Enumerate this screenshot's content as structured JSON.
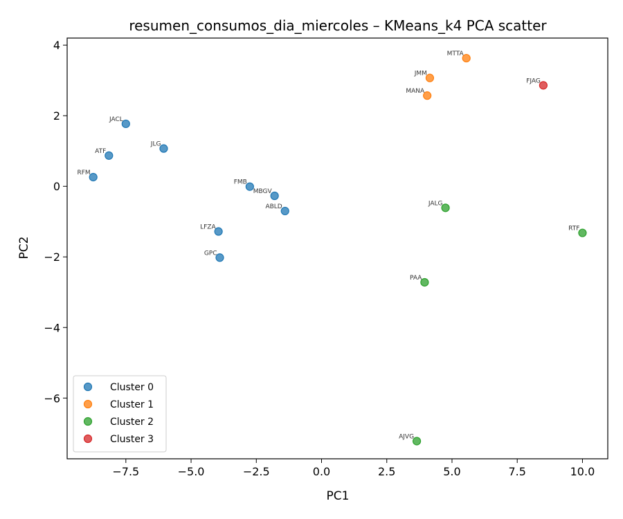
{
  "chart_data": {
    "type": "scatter",
    "title": "resumen_consumos_dia_miercoles – KMeans_k4 PCA scatter",
    "xlabel": "PC1",
    "ylabel": "PC2",
    "xlim": [
      -9.75,
      10.97
    ],
    "ylim": [
      -7.72,
      4.2
    ],
    "xticks": [
      -7.5,
      -5.0,
      -2.5,
      0.0,
      2.5,
      5.0,
      7.5,
      10.0
    ],
    "xtick_labels": [
      "−7.5",
      "−5.0",
      "−2.5",
      "0.0",
      "2.5",
      "5.0",
      "7.5",
      "10.0"
    ],
    "yticks": [
      4,
      2,
      0,
      -2,
      -4,
      -6
    ],
    "ytick_labels": [
      "4",
      "2",
      "0",
      "−2",
      "−4",
      "−6"
    ],
    "grid": false,
    "legend_position": "lower-left",
    "series": [
      {
        "name": "Cluster 0",
        "color": "#1f77b4",
        "points": [
          {
            "label": "JACL",
            "x": -7.5,
            "y": 1.77
          },
          {
            "label": "ATF",
            "x": -8.15,
            "y": 0.87
          },
          {
            "label": "RFM",
            "x": -8.75,
            "y": 0.26
          },
          {
            "label": "JLG",
            "x": -6.05,
            "y": 1.07
          },
          {
            "label": "FMB",
            "x": -2.75,
            "y": -0.01
          },
          {
            "label": "MBGV",
            "x": -1.8,
            "y": -0.27
          },
          {
            "label": "ABLD",
            "x": -1.4,
            "y": -0.7
          },
          {
            "label": "LFZA",
            "x": -3.95,
            "y": -1.28
          },
          {
            "label": "GPC",
            "x": -3.9,
            "y": -2.02
          }
        ]
      },
      {
        "name": "Cluster 1",
        "color": "#ff7f0e",
        "points": [
          {
            "label": "MTTA",
            "x": 5.55,
            "y": 3.63
          },
          {
            "label": "JMM",
            "x": 4.15,
            "y": 3.07
          },
          {
            "label": "MANA",
            "x": 4.05,
            "y": 2.57
          }
        ]
      },
      {
        "name": "Cluster 2",
        "color": "#2ca02c",
        "points": [
          {
            "label": "JALG",
            "x": 4.75,
            "y": -0.61
          },
          {
            "label": "RTF",
            "x": 10.0,
            "y": -1.32
          },
          {
            "label": "PAA",
            "x": 3.95,
            "y": -2.72
          },
          {
            "label": "AJVG",
            "x": 3.65,
            "y": -7.22
          }
        ]
      },
      {
        "name": "Cluster 3",
        "color": "#d62728",
        "points": [
          {
            "label": "FJAG",
            "x": 8.5,
            "y": 2.86
          }
        ]
      }
    ]
  }
}
